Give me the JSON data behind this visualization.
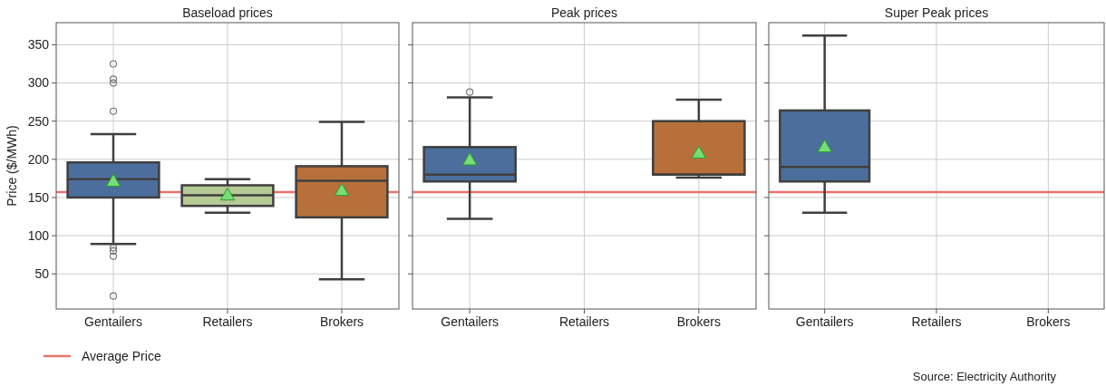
{
  "chart_data": [
    {
      "type": "box",
      "title": "Baseload prices",
      "ylabel": "Price ($/MWh)",
      "categories": [
        "Gentailers",
        "Retailers",
        "Brokers"
      ],
      "colors": [
        "#4c6e9c",
        "#b5c995",
        "#b8703a"
      ],
      "boxes": [
        {
          "low": 89,
          "q1": 150,
          "median": 174,
          "q3": 196,
          "high": 233,
          "mean": 170,
          "outliers": [
            325,
            305,
            300,
            263,
            84,
            80,
            73,
            21
          ]
        },
        {
          "low": 130,
          "q1": 139,
          "median": 153,
          "q3": 166,
          "high": 174,
          "mean": 152
        },
        {
          "low": 43,
          "q1": 124,
          "median": 172,
          "q3": 191,
          "high": 249,
          "mean": 158
        }
      ],
      "marker": "triangle",
      "ylim": [
        4,
        379
      ],
      "yticks": [
        50,
        100,
        150,
        200,
        250,
        300,
        350
      ],
      "grid": true,
      "legend": "bottom left",
      "ref_lines": [
        {
          "axis": "y",
          "value": 157,
          "label": "Average Price",
          "color": "#e8736b"
        }
      ]
    },
    {
      "type": "box",
      "title": "Peak prices",
      "categories": [
        "Gentailers",
        "Retailers",
        "Brokers"
      ],
      "colors": [
        "#4c6e9c",
        null,
        "#b8703a"
      ],
      "boxes": [
        {
          "low": 122,
          "q1": 171,
          "median": 180,
          "q3": 216,
          "high": 281,
          "mean": 198,
          "outliers": [
            288
          ]
        },
        null,
        {
          "low": 176,
          "q1": 180,
          "median": 180,
          "q3": 250,
          "high": 278,
          "mean": 207
        }
      ],
      "marker": "triangle",
      "ylim": [
        4,
        379
      ],
      "yticks": [
        50,
        100,
        150,
        200,
        250,
        300,
        350
      ],
      "grid": true,
      "tick_labels": "x",
      "ref_lines": [
        {
          "axis": "y",
          "value": 157,
          "color": "#e8736b"
        }
      ]
    },
    {
      "type": "box",
      "title": "Super Peak prices",
      "categories": [
        "Gentailers",
        "Retailers",
        "Brokers"
      ],
      "colors": [
        "#4c6e9c",
        null,
        null
      ],
      "boxes": [
        {
          "low": 130,
          "q1": 171,
          "median": 190,
          "q3": 264,
          "high": 362,
          "mean": 215
        },
        null,
        null
      ],
      "marker": "triangle",
      "ylim": [
        4,
        379
      ],
      "yticks": [
        50,
        100,
        150,
        200,
        250,
        300,
        350
      ],
      "grid": true,
      "tick_labels": "x",
      "ref_lines": [
        {
          "axis": "y",
          "value": 157,
          "color": "#e8736b"
        }
      ],
      "annotations": [
        "Source: Electricity Authority"
      ]
    }
  ]
}
